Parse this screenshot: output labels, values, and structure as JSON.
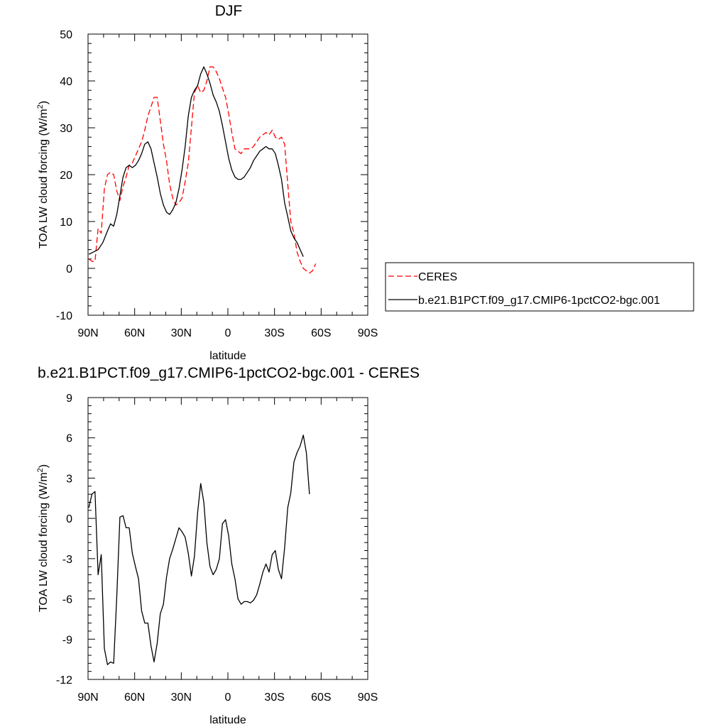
{
  "chart_data": [
    {
      "type": "line",
      "title": "DJF",
      "xlabel": "latitude",
      "ylabel": "TOA LW cloud forcing (W/m²)",
      "ylabel_main": "TOA LW cloud forcing (W/m",
      "ylabel_sup": "2",
      "ylabel_close": ")",
      "xlim": [
        90,
        -90
      ],
      "ylim": [
        -10,
        50
      ],
      "x_ticks": [
        90,
        60,
        30,
        0,
        -30,
        -60,
        -90
      ],
      "x_tick_labels": [
        "90N",
        "60N",
        "30N",
        "0",
        "30S",
        "60S",
        "90S"
      ],
      "y_ticks": [
        -10,
        0,
        10,
        20,
        30,
        40,
        50
      ],
      "y_tick_labels": [
        "-10",
        "0",
        "10",
        "20",
        "30",
        "40",
        "50"
      ],
      "grid": false,
      "legend_placement": "right, outside plot",
      "series": [
        {
          "name": "CERES",
          "color": "#ff0000",
          "dash": "dashed",
          "points": [
            [
              89.5,
              2.0
            ],
            [
              87.5,
              1.5
            ],
            [
              85.5,
              1.5
            ],
            [
              83.5,
              8.5
            ],
            [
              81.5,
              7.5
            ],
            [
              79.5,
              17.0
            ],
            [
              77.5,
              20.0
            ],
            [
              75.5,
              20.5
            ],
            [
              73.5,
              20.0
            ],
            [
              71.5,
              16.5
            ],
            [
              69.5,
              14.5
            ],
            [
              67.5,
              17.5
            ],
            [
              65.5,
              19.5
            ],
            [
              63.5,
              22.0
            ],
            [
              61.5,
              22.5
            ],
            [
              59.5,
              24.0
            ],
            [
              57.5,
              25.5
            ],
            [
              55.5,
              27.0
            ],
            [
              53.5,
              29.5
            ],
            [
              51.5,
              32.5
            ],
            [
              49.5,
              34.5
            ],
            [
              47.5,
              36.5
            ],
            [
              45.5,
              36.5
            ],
            [
              43.5,
              31.5
            ],
            [
              41.5,
              26.5
            ],
            [
              39.5,
              23.0
            ],
            [
              37.5,
              18.0
            ],
            [
              35.5,
              15.0
            ],
            [
              33.5,
              13.5
            ],
            [
              31.5,
              14.0
            ],
            [
              29.5,
              15.0
            ],
            [
              27.5,
              18.5
            ],
            [
              25.5,
              22.5
            ],
            [
              23.5,
              30.0
            ],
            [
              21.5,
              37.5
            ],
            [
              19.5,
              39.0
            ],
            [
              17.5,
              37.5
            ],
            [
              15.5,
              38.0
            ],
            [
              13.5,
              40.0
            ],
            [
              11.5,
              43.0
            ],
            [
              9.5,
              43.0
            ],
            [
              7.5,
              42.0
            ],
            [
              5.5,
              40.5
            ],
            [
              3.5,
              38.5
            ],
            [
              1.5,
              36.5
            ],
            [
              -0.5,
              33.0
            ],
            [
              -2.5,
              29.0
            ],
            [
              -4.5,
              25.5
            ],
            [
              -6.5,
              25.0
            ],
            [
              -8.5,
              24.5
            ],
            [
              -10.5,
              25.5
            ],
            [
              -12.5,
              25.5
            ],
            [
              -14.5,
              25.5
            ],
            [
              -16.5,
              26.0
            ],
            [
              -18.5,
              27.0
            ],
            [
              -20.5,
              28.0
            ],
            [
              -22.5,
              28.5
            ],
            [
              -24.5,
              29.0
            ],
            [
              -26.5,
              28.5
            ],
            [
              -28.5,
              29.5
            ],
            [
              -30.5,
              28.0
            ],
            [
              -32.5,
              27.5
            ],
            [
              -34.5,
              28.0
            ],
            [
              -36.5,
              26.5
            ],
            [
              -38.5,
              18.0
            ],
            [
              -40.5,
              10.0
            ],
            [
              -42.5,
              7.5
            ],
            [
              -44.5,
              3.5
            ],
            [
              -46.5,
              1.5
            ],
            [
              -48.5,
              0.0
            ],
            [
              -50.5,
              -0.5
            ],
            [
              -52.5,
              -1.0
            ],
            [
              -54.5,
              -0.5
            ],
            [
              -56.5,
              1.0
            ]
          ]
        },
        {
          "name": "b.e21.B1PCT.f09_g17.CMIP6-1pctCO2-bgc.001",
          "color": "#000000",
          "dash": "solid",
          "points": [
            [
              89.5,
              3.0
            ],
            [
              86.5,
              3.5
            ],
            [
              83.5,
              4.0
            ],
            [
              80.5,
              5.5
            ],
            [
              77.5,
              8.0
            ],
            [
              75.5,
              9.5
            ],
            [
              73.5,
              9.0
            ],
            [
              71.5,
              11.5
            ],
            [
              69.5,
              15.5
            ],
            [
              67.5,
              19.5
            ],
            [
              65.5,
              21.5
            ],
            [
              63.5,
              22.0
            ],
            [
              61.5,
              21.5
            ],
            [
              59.5,
              22.0
            ],
            [
              57.5,
              23.0
            ],
            [
              55.5,
              24.5
            ],
            [
              53.5,
              26.5
            ],
            [
              51.5,
              27.0
            ],
            [
              49.5,
              25.5
            ],
            [
              47.5,
              22.5
            ],
            [
              45.5,
              19.5
            ],
            [
              43.5,
              16.0
            ],
            [
              41.5,
              13.5
            ],
            [
              39.5,
              12.0
            ],
            [
              37.5,
              11.5
            ],
            [
              35.5,
              12.5
            ],
            [
              33.5,
              14.0
            ],
            [
              31.5,
              17.0
            ],
            [
              29.5,
              21.0
            ],
            [
              27.5,
              26.0
            ],
            [
              25.5,
              32.5
            ],
            [
              23.5,
              36.5
            ],
            [
              21.5,
              38.0
            ],
            [
              19.5,
              39.0
            ],
            [
              17.5,
              41.5
            ],
            [
              15.5,
              43.0
            ],
            [
              13.5,
              41.5
            ],
            [
              11.5,
              39.5
            ],
            [
              9.5,
              37.0
            ],
            [
              7.5,
              35.5
            ],
            [
              5.5,
              33.5
            ],
            [
              3.5,
              30.5
            ],
            [
              1.5,
              27.0
            ],
            [
              -0.5,
              23.5
            ],
            [
              -2.5,
              21.0
            ],
            [
              -4.5,
              19.5
            ],
            [
              -6.5,
              19.0
            ],
            [
              -8.5,
              19.0
            ],
            [
              -10.5,
              19.5
            ],
            [
              -12.5,
              20.5
            ],
            [
              -14.5,
              21.5
            ],
            [
              -16.5,
              23.0
            ],
            [
              -18.5,
              24.0
            ],
            [
              -20.5,
              25.0
            ],
            [
              -22.5,
              25.5
            ],
            [
              -24.5,
              26.0
            ],
            [
              -26.5,
              25.5
            ],
            [
              -28.5,
              25.5
            ],
            [
              -30.5,
              24.5
            ],
            [
              -32.5,
              22.0
            ],
            [
              -34.5,
              19.0
            ],
            [
              -36.5,
              14.0
            ],
            [
              -38.5,
              11.0
            ],
            [
              -40.5,
              8.0
            ],
            [
              -42.5,
              6.5
            ],
            [
              -44.5,
              5.5
            ],
            [
              -46.5,
              4.0
            ],
            [
              -48.5,
              2.5
            ]
          ]
        }
      ]
    },
    {
      "type": "line",
      "title": "b.e21.B1PCT.f09_g17.CMIP6-1pctCO2-bgc.001 - CERES",
      "xlabel": "latitude",
      "ylabel": "TOA LW cloud forcing (W/m²)",
      "ylabel_main": "TOA LW cloud forcing (W/m",
      "ylabel_sup": "2",
      "ylabel_close": ")",
      "xlim": [
        90,
        -90
      ],
      "ylim": [
        -12,
        9
      ],
      "x_ticks": [
        90,
        60,
        30,
        0,
        -30,
        -60,
        -90
      ],
      "x_tick_labels": [
        "90N",
        "60N",
        "30N",
        "0",
        "30S",
        "60S",
        "90S"
      ],
      "y_ticks": [
        -12,
        -9,
        -6,
        -3,
        0,
        3,
        6,
        9
      ],
      "y_tick_labels": [
        "-12",
        "-9",
        "-6",
        "-3",
        "0",
        "3",
        "6",
        "9"
      ],
      "grid": false,
      "series": [
        {
          "color": "#000000",
          "dash": "solid",
          "points": [
            [
              89.5,
              0.8
            ],
            [
              87.5,
              1.8
            ],
            [
              85.5,
              2.0
            ],
            [
              83.5,
              -4.2
            ],
            [
              81.5,
              -2.7
            ],
            [
              79.5,
              -9.7
            ],
            [
              77.5,
              -10.9
            ],
            [
              75.5,
              -10.7
            ],
            [
              73.5,
              -10.8
            ],
            [
              71.5,
              -5.8
            ],
            [
              69.5,
              0.1
            ],
            [
              67.5,
              0.2
            ],
            [
              65.5,
              -0.7
            ],
            [
              63.5,
              -0.7
            ],
            [
              61.5,
              -2.6
            ],
            [
              59.5,
              -3.6
            ],
            [
              57.5,
              -4.5
            ],
            [
              55.5,
              -6.9
            ],
            [
              53.5,
              -7.8
            ],
            [
              51.5,
              -7.8
            ],
            [
              49.5,
              -9.5
            ],
            [
              47.5,
              -10.7
            ],
            [
              45.5,
              -9.3
            ],
            [
              43.5,
              -7.1
            ],
            [
              41.5,
              -6.4
            ],
            [
              39.5,
              -4.4
            ],
            [
              37.5,
              -3.0
            ],
            [
              35.5,
              -2.3
            ],
            [
              33.5,
              -1.5
            ],
            [
              31.5,
              -0.7
            ],
            [
              29.5,
              -1.0
            ],
            [
              27.5,
              -1.4
            ],
            [
              25.5,
              -2.6
            ],
            [
              23.5,
              -4.3
            ],
            [
              21.5,
              -2.8
            ],
            [
              19.5,
              0.4
            ],
            [
              17.5,
              2.6
            ],
            [
              15.5,
              1.2
            ],
            [
              13.5,
              -1.8
            ],
            [
              11.5,
              -3.6
            ],
            [
              9.5,
              -4.2
            ],
            [
              7.5,
              -3.8
            ],
            [
              5.5,
              -3.0
            ],
            [
              3.5,
              -0.4
            ],
            [
              1.5,
              -0.1
            ],
            [
              -0.5,
              -1.3
            ],
            [
              -2.5,
              -3.4
            ],
            [
              -4.5,
              -4.5
            ],
            [
              -6.5,
              -6.0
            ],
            [
              -8.5,
              -6.4
            ],
            [
              -10.5,
              -6.2
            ],
            [
              -12.5,
              -6.2
            ],
            [
              -14.5,
              -6.3
            ],
            [
              -16.5,
              -6.1
            ],
            [
              -18.5,
              -5.7
            ],
            [
              -20.5,
              -4.9
            ],
            [
              -22.5,
              -4.0
            ],
            [
              -24.5,
              -3.4
            ],
            [
              -26.5,
              -4.0
            ],
            [
              -28.5,
              -2.7
            ],
            [
              -30.5,
              -2.4
            ],
            [
              -32.5,
              -3.8
            ],
            [
              -34.5,
              -4.5
            ],
            [
              -36.5,
              -2.2
            ],
            [
              -38.5,
              0.8
            ],
            [
              -40.5,
              1.9
            ],
            [
              -42.5,
              4.2
            ],
            [
              -44.5,
              4.9
            ],
            [
              -46.5,
              5.4
            ],
            [
              -48.5,
              6.2
            ],
            [
              -50.5,
              4.9
            ],
            [
              -52.5,
              1.8
            ]
          ]
        }
      ]
    }
  ]
}
